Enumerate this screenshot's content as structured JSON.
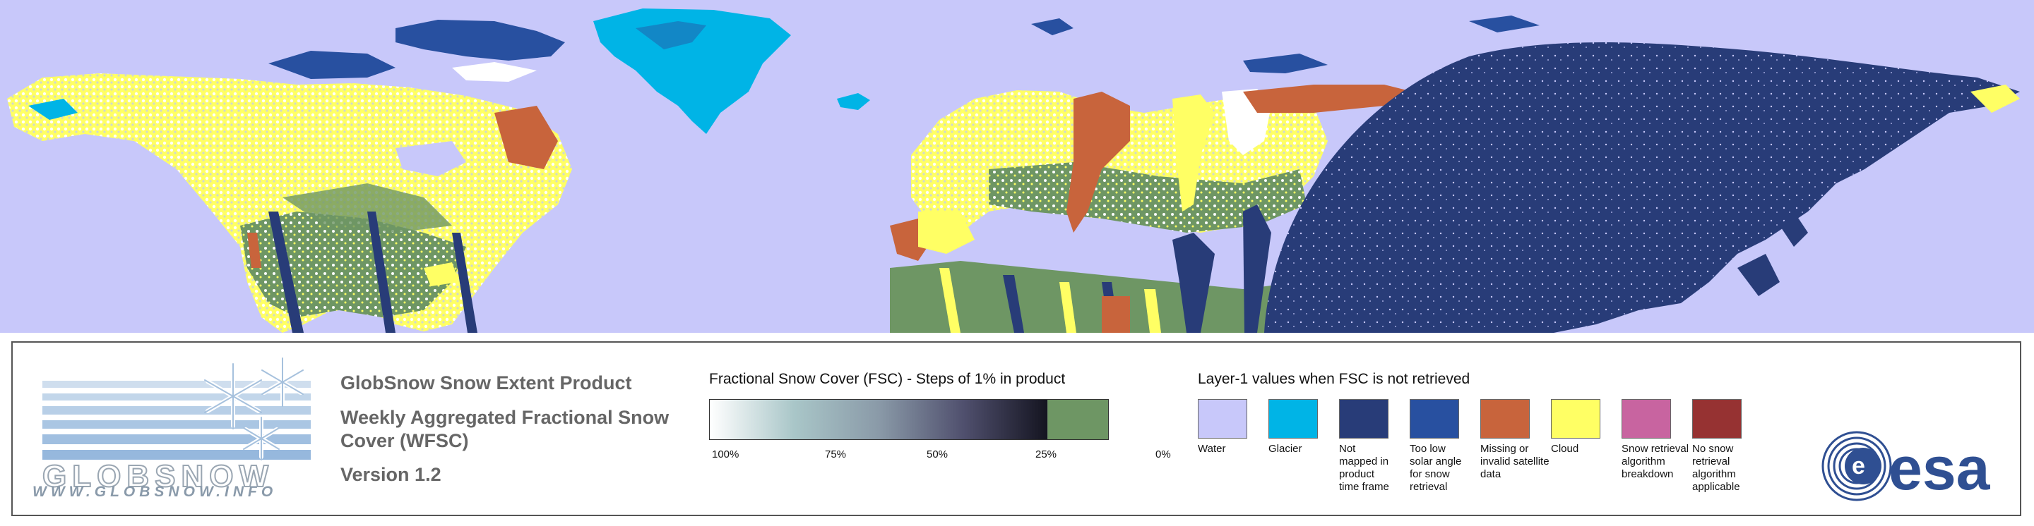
{
  "colors": {
    "water": "#c8c8fa",
    "glacier": "#00b4e6",
    "not_mapped": "#283c78",
    "low_sun": "#2850a0",
    "missing": "#c8643c",
    "cloud": "#ffff64",
    "breakdown": "#c864a0",
    "not_applicable": "#963232",
    "snow_free": "#6e9664"
  },
  "logo": {
    "wordmark": "GLOBSNOW",
    "url": "WWW.GLOBSNOW.INFO"
  },
  "product": {
    "title": "GlobSnow Snow Extent Product",
    "subtitle": "Weekly Aggregated Fractional Snow Cover (WFSC)",
    "version": "Version 1.2"
  },
  "fsc_legend": {
    "title": "Fractional Snow Cover (FSC) - Steps of 1% in product",
    "ticks": [
      "100%",
      "75%",
      "50%",
      "25%",
      "0%"
    ]
  },
  "layer1_legend": {
    "title": "Layer-1 values when FSC is not retrieved",
    "items": [
      {
        "label": "Water",
        "color": "#c8c8fa"
      },
      {
        "label": "Glacier",
        "color": "#00b4e6"
      },
      {
        "label": "Not mapped in product time frame",
        "color": "#283c78"
      },
      {
        "label": "Too low solar angle for snow retrieval",
        "color": "#2850a0"
      },
      {
        "label": "Missing or invalid satellite data",
        "color": "#c8643c"
      },
      {
        "label": "Cloud",
        "color": "#ffff64"
      },
      {
        "label": "Snow retrieval algorithm breakdown",
        "color": "#c864a0"
      },
      {
        "label": "No snow retrieval algorithm applicable",
        "color": "#963232"
      }
    ]
  },
  "esa": {
    "wordmark": "esa"
  }
}
